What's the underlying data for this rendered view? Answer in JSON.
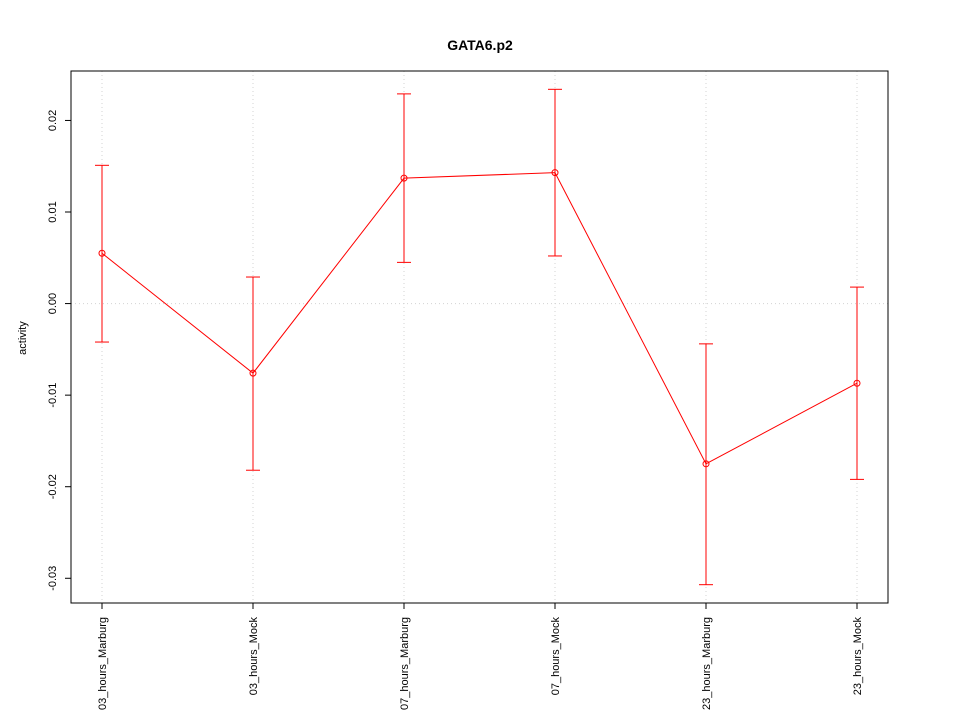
{
  "chart_data": {
    "type": "line",
    "title": "GATA6.p2",
    "xlabel": "",
    "ylabel": "activity",
    "categories": [
      "03_hours_Marburg",
      "03_hours_Mock",
      "07_hours_Marburg",
      "07_hours_Mock",
      "23_hours_Marburg",
      "23_hours_Mock"
    ],
    "series": [
      {
        "values": [
          0.0055,
          -0.0076,
          0.0137,
          0.0143,
          -0.0175,
          -0.0087
        ],
        "upper": [
          0.0151,
          0.0029,
          0.0229,
          0.0234,
          -0.0044,
          0.0018
        ],
        "lower": [
          -0.0042,
          -0.0182,
          0.0045,
          0.0052,
          -0.0307,
          -0.0192
        ]
      }
    ],
    "yticks": [
      -0.03,
      -0.02,
      -0.01,
      0.0,
      0.01,
      0.02
    ],
    "ytick_labels": [
      "-0.03",
      "-0.02",
      "-0.01",
      "0.00",
      "0.01",
      "0.02"
    ],
    "ylim": [
      -0.0327,
      0.0254
    ],
    "grid": true,
    "reference_line": 0,
    "colors": {
      "series": "#ff0000",
      "grid": "#d3d3d3",
      "axis": "#000000"
    }
  }
}
